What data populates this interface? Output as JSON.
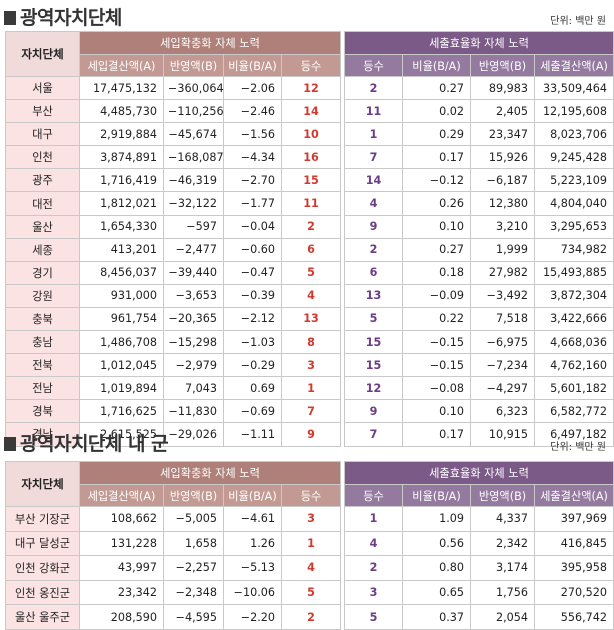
{
  "regional": {
    "title": "광역자치단체",
    "unit": "단위: 백만 원",
    "header_name": "자치단체",
    "group_a": "세입확충화 자체 노력",
    "group_b": "세출효율화 자체 노력",
    "cols_a": [
      "세입결산액(A)",
      "반영액(B)",
      "비율(B/A)",
      "등수"
    ],
    "cols_b": [
      "등수",
      "비율(B/A)",
      "반영액(B)",
      "세출결산액(A)"
    ],
    "rows": [
      [
        "서울",
        "17,475,132",
        "−360,064",
        "−2.06",
        "12",
        "2",
        "0.27",
        "89,983",
        "33,509,464"
      ],
      [
        "부산",
        "4,485,730",
        "−110,256",
        "−2.46",
        "14",
        "11",
        "0.02",
        "2,405",
        "12,195,608"
      ],
      [
        "대구",
        "2,919,884",
        "−45,674",
        "−1.56",
        "10",
        "1",
        "0.29",
        "23,347",
        "8,023,706"
      ],
      [
        "인천",
        "3,874,891",
        "−168,087",
        "−4.34",
        "16",
        "7",
        "0.17",
        "15,926",
        "9,245,428"
      ],
      [
        "광주",
        "1,716,419",
        "−46,319",
        "−2.70",
        "15",
        "14",
        "−0.12",
        "−6,187",
        "5,223,109"
      ],
      [
        "대전",
        "1,812,021",
        "−32,122",
        "−1.77",
        "11",
        "4",
        "0.26",
        "12,380",
        "4,804,040"
      ],
      [
        "울산",
        "1,654,330",
        "−597",
        "−0.04",
        "2",
        "9",
        "0.10",
        "3,210",
        "3,295,653"
      ],
      [
        "세종",
        "413,201",
        "−2,477",
        "−0.60",
        "6",
        "2",
        "0.27",
        "1,999",
        "734,982"
      ],
      [
        "경기",
        "8,456,037",
        "−39,440",
        "−0.47",
        "5",
        "6",
        "0.18",
        "27,982",
        "15,493,885"
      ],
      [
        "강원",
        "931,000",
        "−3,653",
        "−0.39",
        "4",
        "13",
        "−0.09",
        "−3,492",
        "3,872,304"
      ],
      [
        "충북",
        "961,754",
        "−20,365",
        "−2.12",
        "13",
        "5",
        "0.22",
        "7,518",
        "3,422,666"
      ],
      [
        "충남",
        "1,486,708",
        "−15,298",
        "−1.03",
        "8",
        "15",
        "−0.15",
        "−6,975",
        "4,668,036"
      ],
      [
        "전북",
        "1,012,045",
        "−2,979",
        "−0.29",
        "3",
        "15",
        "−0.15",
        "−7,234",
        "4,762,160"
      ],
      [
        "전남",
        "1,019,894",
        "7,043",
        "0.69",
        "1",
        "12",
        "−0.08",
        "−4,297",
        "5,601,182"
      ],
      [
        "경북",
        "1,716,625",
        "−11,830",
        "−0.69",
        "7",
        "9",
        "0.10",
        "6,323",
        "6,582,772"
      ],
      [
        "경남",
        "2,615,525",
        "−29,026",
        "−1.11",
        "9",
        "7",
        "0.17",
        "10,915",
        "6,497,182"
      ]
    ]
  },
  "county": {
    "title": "광역자치단체 내 군",
    "unit": "단위: 백만 원",
    "header_name": "자치단체",
    "group_a": "세입확충화 자체 노력",
    "group_b": "세출효율화 자체 노력",
    "cols_a": [
      "세입결산액(A)",
      "반영액(B)",
      "비율(B/A)",
      "등수"
    ],
    "cols_b": [
      "등수",
      "비율(B/A)",
      "반영액(B)",
      "세출결산액(A)"
    ],
    "rows": [
      [
        "부산 기장군",
        "108,662",
        "−5,005",
        "−4.61",
        "3",
        "1",
        "1.09",
        "4,337",
        "397,969"
      ],
      [
        "대구 달성군",
        "131,228",
        "1,658",
        "1.26",
        "1",
        "4",
        "0.56",
        "2,342",
        "416,845"
      ],
      [
        "인천 강화군",
        "43,997",
        "−2,257",
        "−5.13",
        "4",
        "2",
        "0.80",
        "3,174",
        "395,958"
      ],
      [
        "인천 옹진군",
        "23,342",
        "−2,348",
        "−10.06",
        "5",
        "3",
        "0.65",
        "1,756",
        "270,520"
      ],
      [
        "울산 울주군",
        "208,590",
        "−4,595",
        "−2.20",
        "2",
        "5",
        "0.37",
        "2,054",
        "556,742"
      ]
    ]
  }
}
